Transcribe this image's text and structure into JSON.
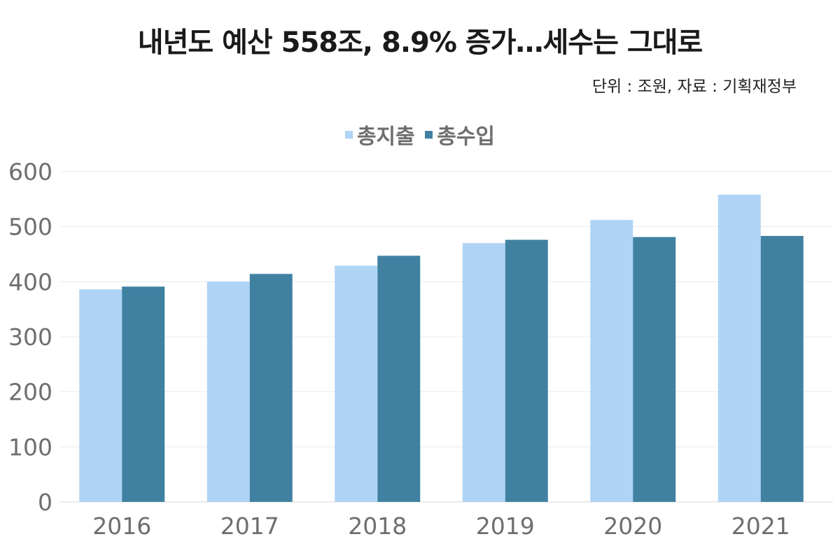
{
  "title": "내년도 예산 558조, 8.9% 증가…세수는 그대로",
  "subtitle": "단위 : 조원, 자료 : 기획재정부",
  "chart_data": {
    "type": "bar",
    "title": "내년도 예산 558조, 8.9% 증가…세수는 그대로",
    "subtitle": "단위 : 조원, 자료 : 기획재정부",
    "categories": [
      "2016",
      "2017",
      "2018",
      "2019",
      "2020",
      "2021"
    ],
    "series": [
      {
        "name": "총지출",
        "color": "#afd4f5",
        "values": [
          386,
          400,
          429,
          470,
          512,
          558
        ]
      },
      {
        "name": "총수입",
        "color": "#4081a2",
        "values": [
          391,
          414,
          447,
          476,
          481,
          483
        ]
      }
    ],
    "ylim": [
      0,
      600
    ],
    "yticks": [
      "0",
      "100",
      "200",
      "300",
      "400",
      "500",
      "600"
    ],
    "xlabel": "",
    "ylabel": "",
    "grid": true,
    "legend": "top-center"
  }
}
